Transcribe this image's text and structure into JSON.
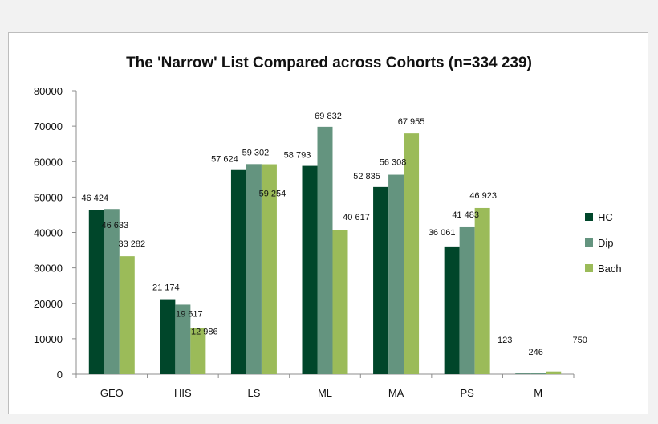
{
  "chart_data": {
    "type": "bar",
    "title": "The 'Narrow' List Compared across Cohorts (n=334 239)",
    "categories": [
      "GEO",
      "HIS",
      "LS",
      "ML",
      "MA",
      "PS",
      "M"
    ],
    "series": [
      {
        "name": "HC",
        "color": "#00462a",
        "values": [
          46424,
          21174,
          57624,
          58793,
          52835,
          36061,
          123
        ],
        "labels": [
          "46 424",
          "21 174",
          "57 624",
          "58 793",
          "52 835",
          "36 061",
          "123"
        ]
      },
      {
        "name": "Dip",
        "color": "#64947f",
        "values": [
          46633,
          19617,
          59302,
          69832,
          56308,
          41483,
          246
        ],
        "labels": [
          "46 633",
          "19 617",
          "59 302",
          "69 832",
          "56 308",
          "41 483",
          "246"
        ]
      },
      {
        "name": "Bach",
        "color": "#9bbb59",
        "values": [
          33282,
          12986,
          59254,
          40617,
          67955,
          46923,
          750
        ],
        "labels": [
          "33 282",
          "12 986",
          "59 254",
          "40 617",
          "67 955",
          "46 923",
          "750"
        ]
      }
    ],
    "ylim": [
      0,
      80000
    ],
    "yticks": [
      "0",
      "10000",
      "20000",
      "30000",
      "40000",
      "50000",
      "60000",
      "70000",
      "80000"
    ],
    "xlabel": "",
    "ylabel": "",
    "grid": false,
    "legend": "right"
  }
}
